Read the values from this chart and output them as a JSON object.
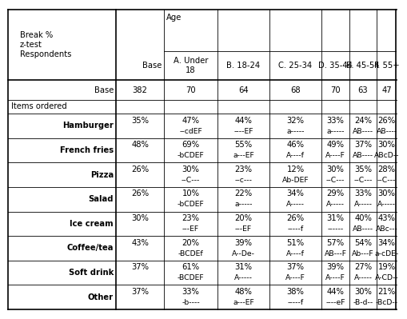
{
  "header_col_labels": [
    "Base",
    "A. Under\n18",
    "B. 18-24",
    "C. 25-34",
    "D. 35-44",
    "E. 45-54",
    "F. 55+"
  ],
  "base_row": [
    "Base",
    "382",
    "70",
    "64",
    "68",
    "70",
    "63",
    "47"
  ],
  "section_label": "Items ordered",
  "items": [
    {
      "name": "Hamburger",
      "values": [
        "35%",
        "47%",
        "44%",
        "32%",
        "33%",
        "24%",
        "26%"
      ],
      "sig": [
        "",
        "--cdEF",
        "----EF",
        "a-----",
        "a-----",
        "AB----",
        "AB----"
      ]
    },
    {
      "name": "French fries",
      "values": [
        "48%",
        "69%",
        "55%",
        "46%",
        "49%",
        "37%",
        "30%"
      ],
      "sig": [
        "",
        "-bCDEF",
        "a---EF",
        "A----f",
        "A----F",
        "AB----",
        "ABcD--"
      ]
    },
    {
      "name": "Pizza",
      "values": [
        "26%",
        "30%",
        "23%",
        "12%",
        "30%",
        "35%",
        "28%"
      ],
      "sig": [
        "",
        "--C---",
        "--c---",
        "Ab-DEF",
        "--C---",
        "--C---",
        "--C---"
      ]
    },
    {
      "name": "Salad",
      "values": [
        "26%",
        "10%",
        "22%",
        "34%",
        "29%",
        "33%",
        "30%"
      ],
      "sig": [
        "",
        "-bCDEF",
        "a-----",
        "A-----",
        "A-----",
        "A-----",
        "A-----"
      ]
    },
    {
      "name": "Ice cream",
      "values": [
        "30%",
        "23%",
        "20%",
        "26%",
        "31%",
        "40%",
        "43%"
      ],
      "sig": [
        "",
        "---EF",
        "---EF",
        "-----f",
        "------",
        "AB----",
        "ABc---"
      ]
    },
    {
      "name": "Coffee/tea",
      "values": [
        "43%",
        "20%",
        "39%",
        "51%",
        "57%",
        "54%",
        "34%"
      ],
      "sig": [
        "",
        "-BCDEf",
        "A--De-",
        "A----f",
        "AB---F",
        "Ab---F",
        "a-cDE-"
      ]
    },
    {
      "name": "Soft drink",
      "values": [
        "37%",
        "61%",
        "31%",
        "37%",
        "39%",
        "27%",
        "19%"
      ],
      "sig": [
        "",
        "-BCDEF",
        "A-----",
        "A----F",
        "A----F",
        "A-----",
        "A-CD--"
      ]
    },
    {
      "name": "Other",
      "values": [
        "37%",
        "33%",
        "48%",
        "38%",
        "44%",
        "30%",
        "21%"
      ],
      "sig": [
        "",
        "-b----",
        "a---EF",
        "-----f",
        "----eF",
        "-B-d--",
        "-BcD--"
      ]
    }
  ],
  "bg_color": "#ffffff",
  "text_color": "#000000",
  "font_size": 7.2
}
